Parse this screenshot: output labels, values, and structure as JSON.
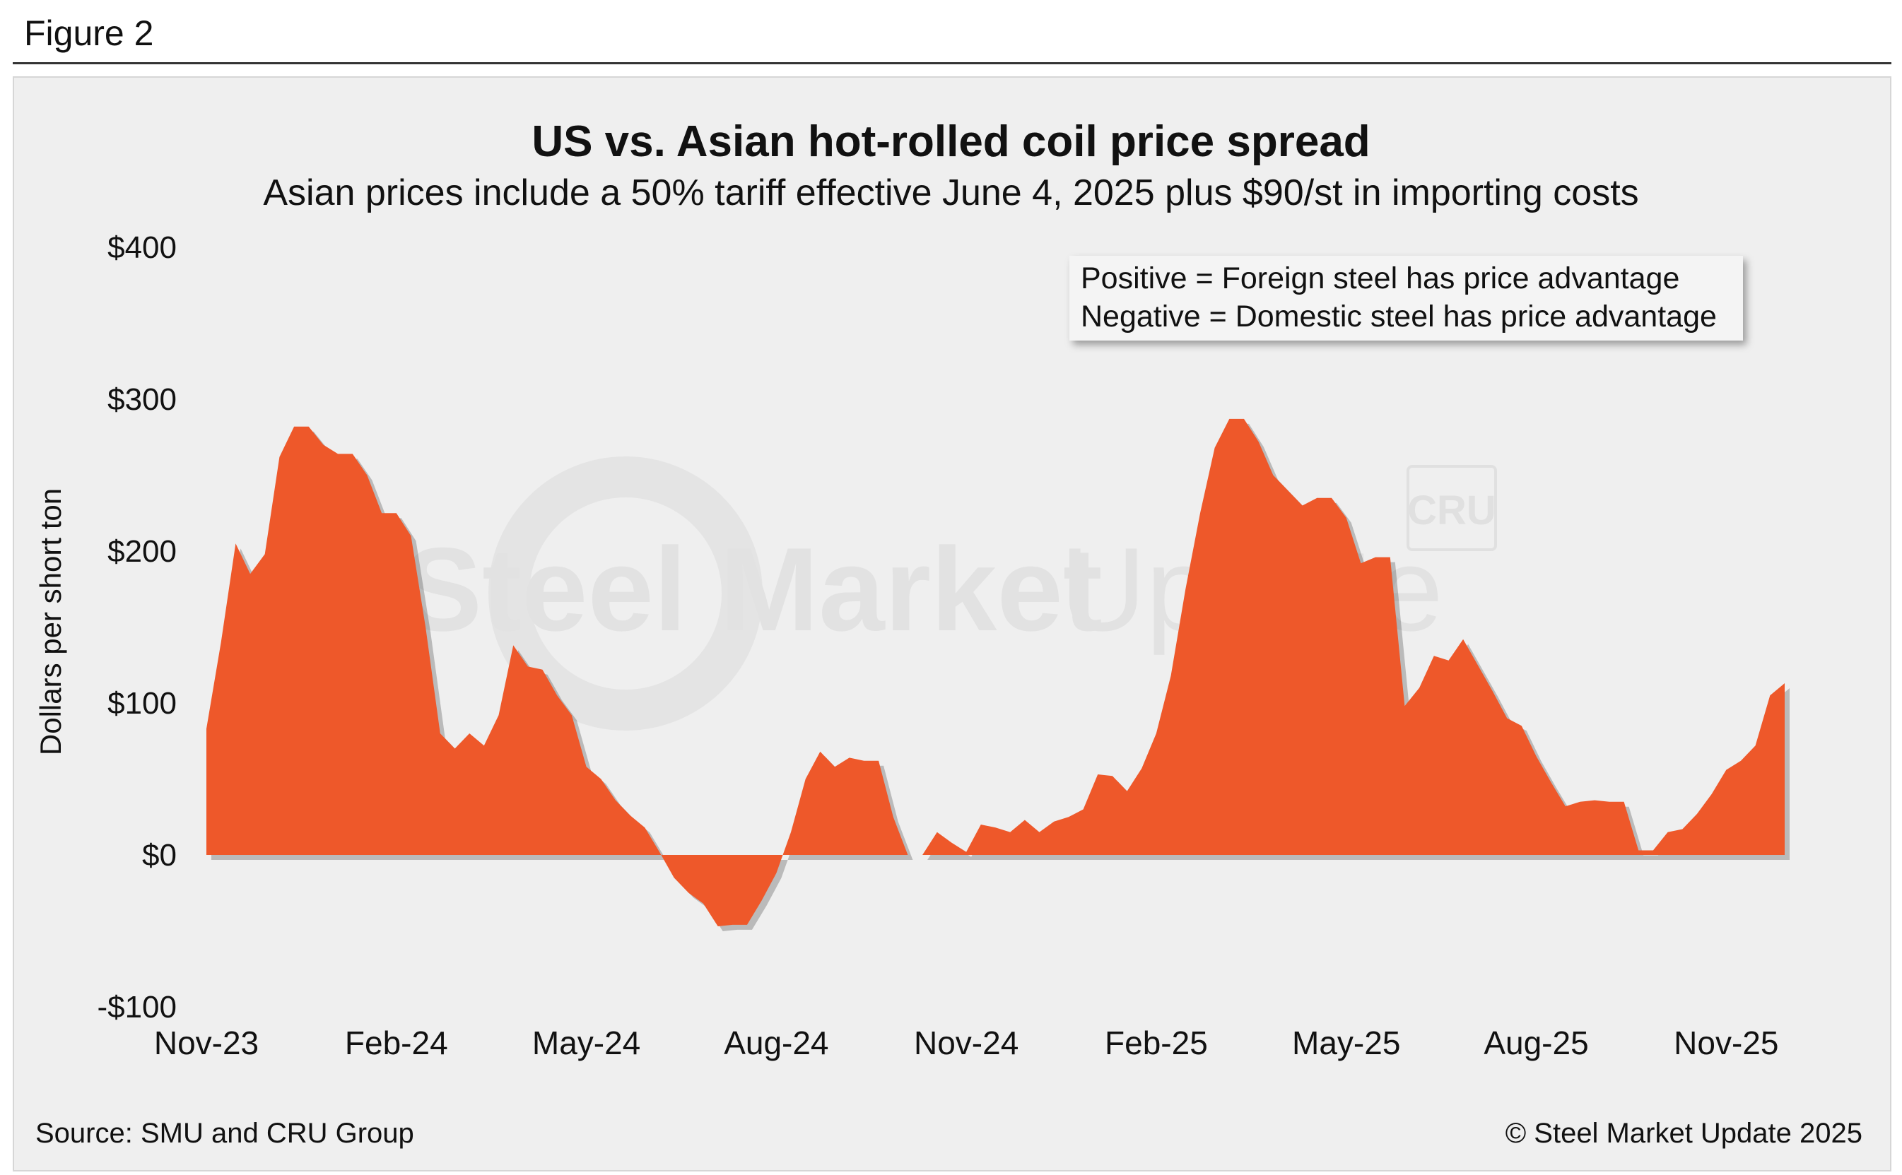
{
  "figure_label": "Figure 2",
  "source": "Source: SMU and CRU Group",
  "copyright": "© Steel Market Update 2025",
  "watermark": {
    "text_bold": "Steel Market",
    "text_light": "Update",
    "badge": "CRU"
  },
  "colors": {
    "area": "#ee582a",
    "panel": "#efefef",
    "text": "#111111"
  },
  "chart_data": {
    "type": "area",
    "title": "US vs. Asian hot-rolled coil price spread",
    "subtitle": "Asian prices include a 50% tariff effective June 4, 2025 plus $90/st in importing costs",
    "ylabel": "Dollars per short ton",
    "xlabel": "",
    "ylim": [
      -100,
      400
    ],
    "y_ticks": [
      400,
      300,
      200,
      100,
      0,
      -100
    ],
    "y_tick_labels": [
      "$400",
      "$300",
      "$200",
      "$100",
      "$0",
      "-$100"
    ],
    "x_tick_labels": [
      "Nov-23",
      "Feb-24",
      "May-24",
      "Aug-24",
      "Nov-24",
      "Feb-25",
      "May-25",
      "Aug-25",
      "Nov-25"
    ],
    "x_tick_weeks": [
      0,
      13,
      26,
      39,
      52,
      65,
      78,
      91,
      104
    ],
    "legend": [
      "Positive = Foreign steel has price advantage",
      "Negative = Domestic steel has price advantage"
    ],
    "grid": false,
    "series": [
      {
        "name": "US vs. Asian HRC price spread",
        "values": [
          83,
          140,
          205,
          185,
          198,
          262,
          282,
          282,
          270,
          264,
          264,
          250,
          225,
          225,
          210,
          150,
          80,
          70,
          80,
          72,
          92,
          138,
          124,
          122,
          105,
          92,
          58,
          50,
          36,
          26,
          18,
          2,
          -15,
          -25,
          -32,
          -47,
          -46,
          -46,
          -30,
          -12,
          15,
          50,
          68,
          58,
          64,
          62,
          62,
          25,
          0,
          0,
          15,
          8,
          2,
          20,
          18,
          15,
          23,
          15,
          22,
          25,
          30,
          53,
          52,
          42,
          57,
          80,
          118,
          175,
          225,
          268,
          287,
          287,
          272,
          250,
          240,
          230,
          235,
          235,
          222,
          192,
          196,
          196,
          98,
          110,
          131,
          128,
          142,
          125,
          108,
          90,
          85,
          65,
          48,
          32,
          35,
          36,
          35,
          35,
          3,
          3,
          15,
          17,
          27,
          40,
          56,
          62,
          72,
          105,
          113
        ]
      }
    ]
  }
}
